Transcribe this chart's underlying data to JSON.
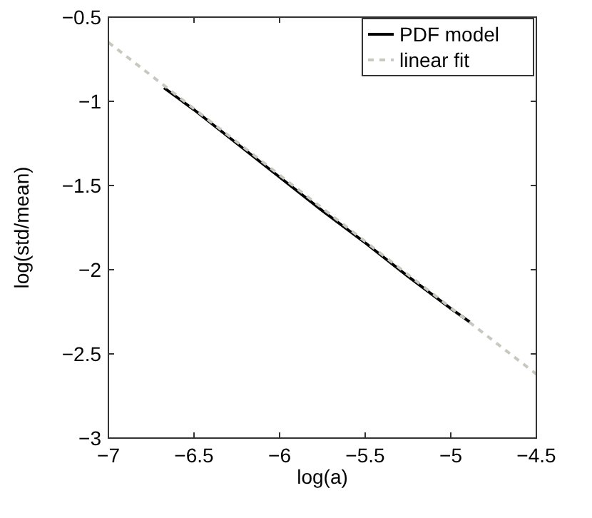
{
  "chart_data": {
    "type": "line",
    "xlabel": "log(a)",
    "ylabel": "log(std/mean)",
    "xlim": [
      -7,
      -4.5
    ],
    "ylim": [
      -3,
      -0.5
    ],
    "xticks": [
      -7,
      -6.5,
      -6,
      -5.5,
      -5,
      -4.5
    ],
    "yticks": [
      -3,
      -2.5,
      -2,
      -1.5,
      -1,
      -0.5
    ],
    "grid": false,
    "legend": "top right",
    "series": [
      {
        "name": "PDF model",
        "color": "#000000",
        "line_style": "solid",
        "x": [
          -6.675,
          -6.5,
          -6.25,
          -6,
          -5.75,
          -5.5,
          -5.25,
          -5,
          -4.89
        ],
        "values": [
          -0.92,
          -1.05,
          -1.25,
          -1.45,
          -1.65,
          -1.84,
          -2.04,
          -2.23,
          -2.31
        ]
      },
      {
        "name": "linear fit",
        "color": "#c8c8c0",
        "line_style": "dashed",
        "x": [
          -7,
          -4.5
        ],
        "values": [
          -0.65,
          -2.62
        ]
      }
    ]
  }
}
